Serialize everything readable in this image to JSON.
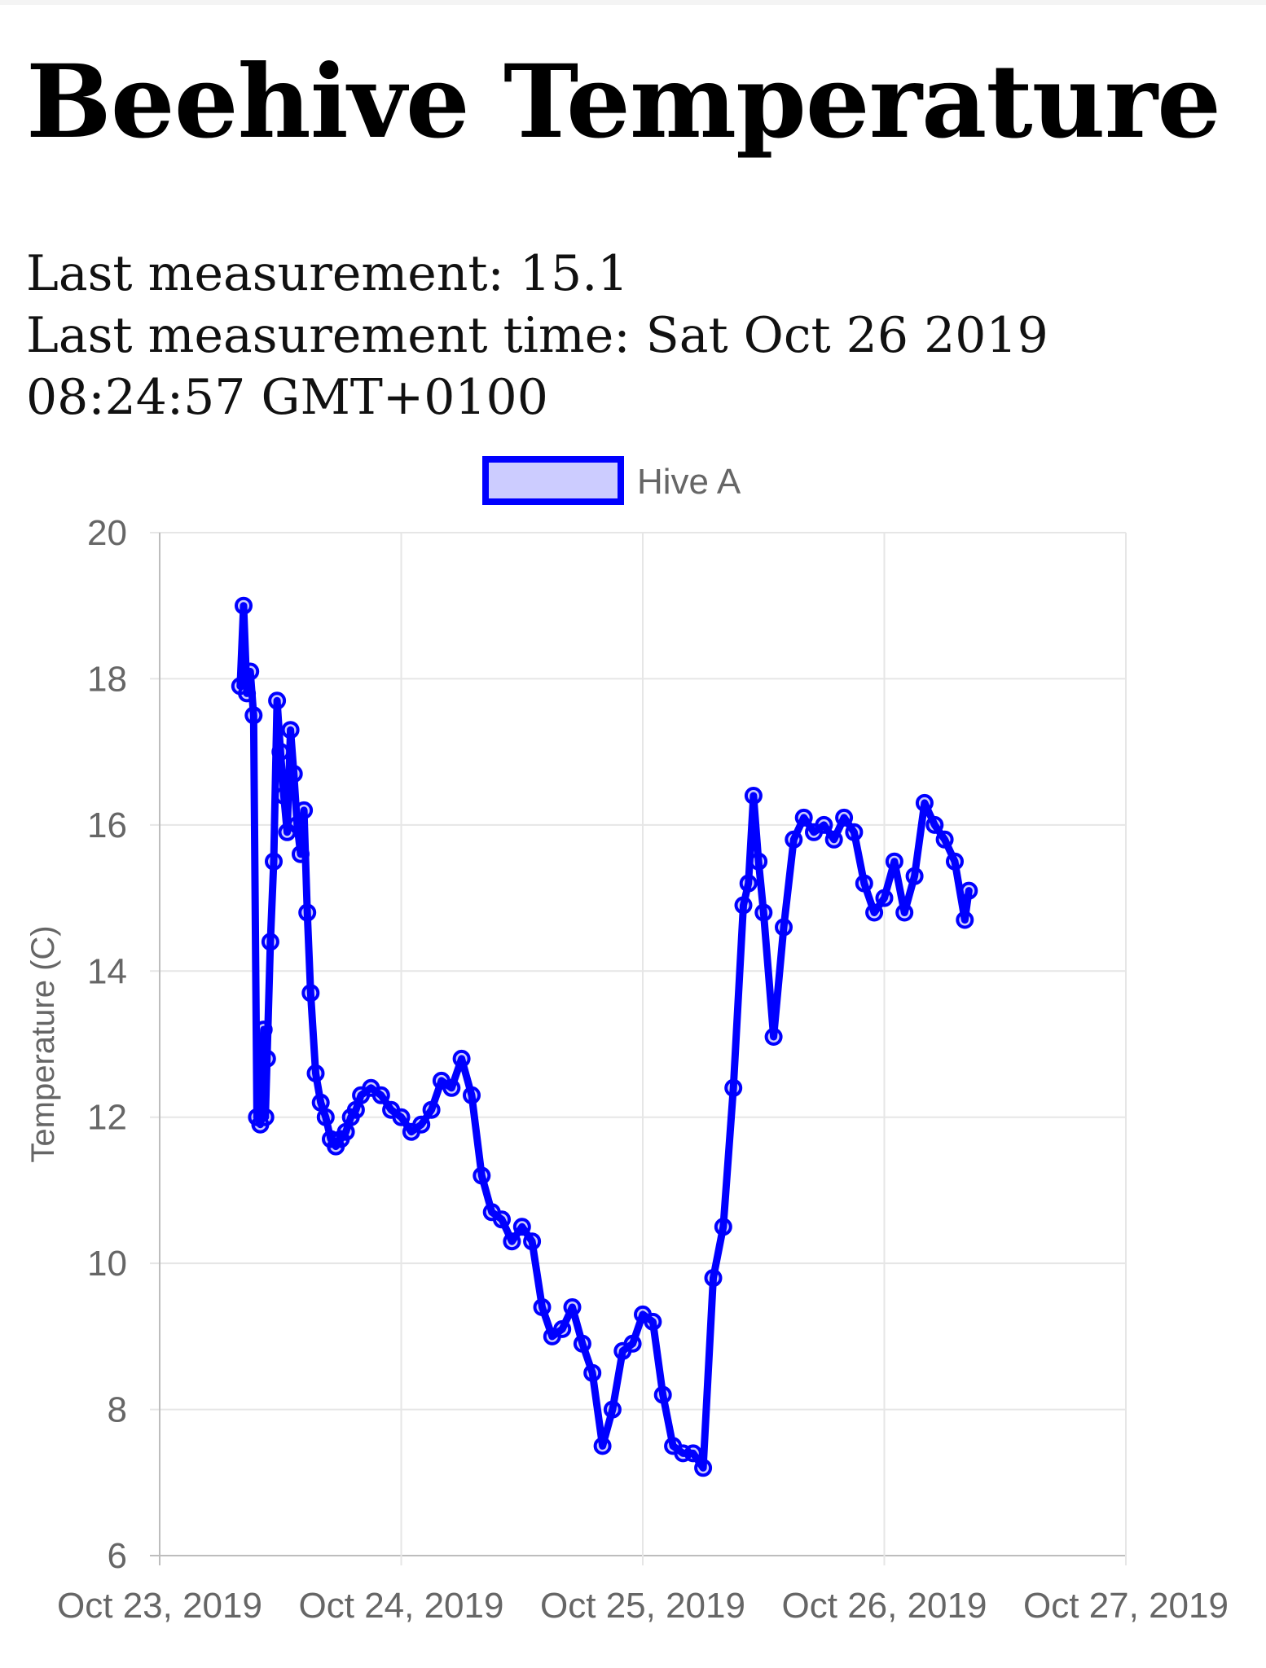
{
  "page": {
    "title": "Beehive Temperature",
    "last_measurement_label": "Last measurement:",
    "last_measurement_value": "15.1",
    "last_time_label": "Last measurement time:",
    "last_time_value": "Sat Oct 26 2019 08:24:57 GMT+0100"
  },
  "colors": {
    "series_line": "#0000ff",
    "series_fill": "rgba(0,0,255,0.2)",
    "grid": "#e6e6e6",
    "axis_text": "#666666"
  },
  "chart_data": {
    "type": "line",
    "title": "",
    "xlabel": "",
    "ylabel": "Temperature (C)",
    "ylim": [
      6,
      20
    ],
    "yticks": [
      6,
      8,
      10,
      12,
      14,
      16,
      18,
      20
    ],
    "xlim": [
      "2019-10-23",
      "2019-10-27"
    ],
    "xticks": [
      "Oct 23, 2019",
      "Oct 24, 2019",
      "Oct 25, 2019",
      "Oct 26, 2019",
      "Oct 27, 2019"
    ],
    "legend": "top-center",
    "grid": true,
    "series": [
      {
        "name": "Hive A",
        "x": [
          "2019-10-23 08:00",
          "2019-10-23 08:20",
          "2019-10-23 08:40",
          "2019-10-23 09:00",
          "2019-10-23 09:20",
          "2019-10-23 09:40",
          "2019-10-23 10:00",
          "2019-10-23 10:20",
          "2019-10-23 10:30",
          "2019-10-23 10:40",
          "2019-10-23 11:00",
          "2019-10-23 11:20",
          "2019-10-23 11:40",
          "2019-10-23 12:00",
          "2019-10-23 12:20",
          "2019-10-23 12:40",
          "2019-10-23 13:00",
          "2019-10-23 13:20",
          "2019-10-23 13:40",
          "2019-10-23 14:00",
          "2019-10-23 14:20",
          "2019-10-23 14:40",
          "2019-10-23 15:00",
          "2019-10-23 15:30",
          "2019-10-23 16:00",
          "2019-10-23 16:30",
          "2019-10-23 17:00",
          "2019-10-23 17:30",
          "2019-10-23 18:00",
          "2019-10-23 18:30",
          "2019-10-23 19:00",
          "2019-10-23 19:30",
          "2019-10-23 20:00",
          "2019-10-23 21:00",
          "2019-10-23 22:00",
          "2019-10-23 23:00",
          "2019-10-24 00:00",
          "2019-10-24 01:00",
          "2019-10-24 02:00",
          "2019-10-24 03:00",
          "2019-10-24 04:00",
          "2019-10-24 05:00",
          "2019-10-24 06:00",
          "2019-10-24 07:00",
          "2019-10-24 08:00",
          "2019-10-24 09:00",
          "2019-10-24 10:00",
          "2019-10-24 11:00",
          "2019-10-24 12:00",
          "2019-10-24 13:00",
          "2019-10-24 14:00",
          "2019-10-24 15:00",
          "2019-10-24 16:00",
          "2019-10-24 17:00",
          "2019-10-24 18:00",
          "2019-10-24 19:00",
          "2019-10-24 20:00",
          "2019-10-24 21:00",
          "2019-10-24 22:00",
          "2019-10-24 23:00",
          "2019-10-25 00:00",
          "2019-10-25 01:00",
          "2019-10-25 02:00",
          "2019-10-25 03:00",
          "2019-10-25 04:00",
          "2019-10-25 05:00",
          "2019-10-25 06:00",
          "2019-10-25 07:00",
          "2019-10-25 08:00",
          "2019-10-25 09:00",
          "2019-10-25 10:00",
          "2019-10-25 10:30",
          "2019-10-25 11:00",
          "2019-10-25 11:30",
          "2019-10-25 12:00",
          "2019-10-25 13:00",
          "2019-10-25 14:00",
          "2019-10-25 15:00",
          "2019-10-25 16:00",
          "2019-10-25 17:00",
          "2019-10-25 18:00",
          "2019-10-25 19:00",
          "2019-10-25 20:00",
          "2019-10-25 21:00",
          "2019-10-25 22:00",
          "2019-10-25 23:00",
          "2019-10-26 00:00",
          "2019-10-26 01:00",
          "2019-10-26 02:00",
          "2019-10-26 03:00",
          "2019-10-26 04:00",
          "2019-10-26 05:00",
          "2019-10-26 06:00",
          "2019-10-26 07:00",
          "2019-10-26 08:00",
          "2019-10-26 08:24"
        ],
        "y": [
          17.9,
          19.0,
          17.8,
          18.1,
          17.5,
          12.0,
          11.9,
          13.2,
          12.0,
          12.8,
          14.4,
          15.5,
          17.7,
          17.0,
          16.4,
          15.9,
          17.3,
          16.7,
          16.0,
          15.6,
          16.2,
          14.8,
          13.7,
          12.6,
          12.2,
          12.0,
          11.7,
          11.6,
          11.7,
          11.8,
          12.0,
          12.1,
          12.3,
          12.4,
          12.3,
          12.1,
          12.0,
          11.8,
          11.9,
          12.1,
          12.5,
          12.4,
          12.8,
          12.3,
          11.2,
          10.7,
          10.6,
          10.3,
          10.5,
          10.3,
          9.4,
          9.0,
          9.1,
          9.4,
          8.9,
          8.5,
          7.5,
          8.0,
          8.8,
          8.9,
          9.3,
          9.2,
          8.2,
          7.5,
          7.4,
          7.4,
          7.2,
          9.8,
          10.5,
          12.4,
          14.9,
          15.2,
          16.4,
          15.5,
          14.8,
          13.1,
          14.6,
          15.8,
          16.1,
          15.9,
          16.0,
          15.8,
          16.1,
          15.9,
          15.2,
          14.8,
          15.0,
          15.5,
          14.8,
          15.3,
          16.3,
          16.0,
          15.8,
          15.5,
          14.7,
          15.1
        ]
      }
    ]
  }
}
